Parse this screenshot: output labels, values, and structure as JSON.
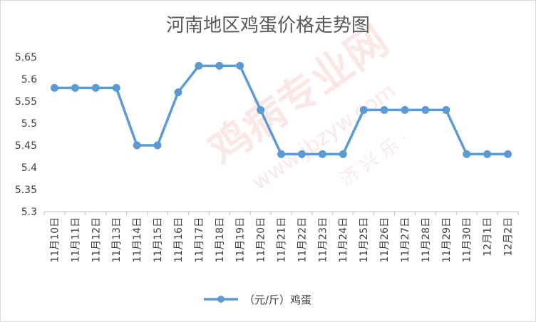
{
  "chart_data": {
    "type": "line",
    "title": "河南地区鸡蛋价格走势图",
    "xlabel": "",
    "ylabel": "",
    "categories": [
      "11月10日",
      "11月11日",
      "11月12日",
      "11月13日",
      "11月14日",
      "11月15日",
      "11月16日",
      "11月17日",
      "11月18日",
      "11月19日",
      "11月20日",
      "11月21日",
      "11月22日",
      "11月23日",
      "11月24日",
      "11月25日",
      "11月26日",
      "11月27日",
      "11月28日",
      "11月29日",
      "11月30日",
      "12月1日",
      "12月2日"
    ],
    "series": [
      {
        "name": "（元/斤）鸡蛋",
        "color": "#5b9bd5",
        "values": [
          5.58,
          5.58,
          5.58,
          5.58,
          5.45,
          5.45,
          5.57,
          5.63,
          5.63,
          5.63,
          5.53,
          5.43,
          5.43,
          5.43,
          5.43,
          5.53,
          5.53,
          5.53,
          5.53,
          5.53,
          5.43,
          5.43,
          5.43
        ]
      }
    ],
    "ylim": [
      5.3,
      5.65
    ],
    "yticks": [
      "5.3",
      "5.35",
      "5.4",
      "5.45",
      "5.5",
      "5.55",
      "5.6",
      "5.65"
    ],
    "grid": false,
    "legend": "bottom"
  },
  "watermark": {
    "main": "鸡病专业网",
    "url": "www.jbzyw.com",
    "sub": "济 兴 乐 ·"
  }
}
